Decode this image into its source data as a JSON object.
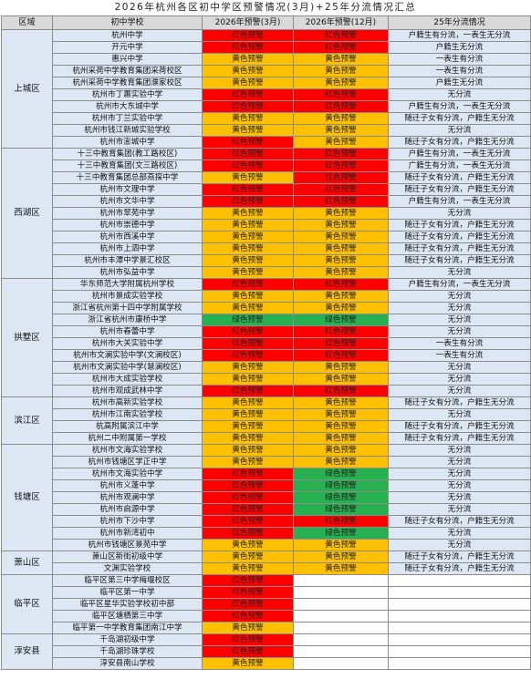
{
  "title": "2026年杭州各区初中学区预警情况(3月)+25年分流情况汇总",
  "headers": [
    "区域",
    "初中学校",
    "2026年预警(3月)",
    "2026年预警(12月)",
    "25年分流情况"
  ],
  "colors": {
    "red": "#fe0000",
    "yellow": "#ffc000",
    "green": "#27b04f",
    "blue": "#dde7f3"
  },
  "labels": {
    "r": "红色预警",
    "y": "黄色预警",
    "g": "绿色预警"
  },
  "regions": [
    {
      "name": "上城区",
      "schools": [
        {
          "name": "杭州中学",
          "mar": "r",
          "dec": "r",
          "note": "户籍生有分流，一表生无分流"
        },
        {
          "name": "开元中学",
          "mar": "r",
          "dec": "r",
          "note": "户籍生无分流"
        },
        {
          "name": "惠兴中学",
          "mar": "y",
          "dec": "y",
          "note": "一表生有分流"
        },
        {
          "name": "杭州采荷中学教育集团采荷校区",
          "mar": "y",
          "dec": "y",
          "note": "一表生有分流"
        },
        {
          "name": "杭州采荷中学教育集团濮家校区",
          "mar": "y",
          "dec": "y",
          "note": "户籍生无分流"
        },
        {
          "name": "杭州市丁蕙实验中学",
          "mar": "r",
          "dec": "r",
          "note": "无分流"
        },
        {
          "name": "杭州市大东城中学",
          "mar": "r",
          "dec": "r",
          "note": "户籍生有分流，一表生无分流"
        },
        {
          "name": "杭州市丁兰实验中学",
          "mar": "y",
          "dec": "y",
          "note": "随迁子女有分流，户籍生无分流"
        },
        {
          "name": "杭州市钱江新城实验学校",
          "mar": "y",
          "dec": "y",
          "note": "无分流"
        },
        {
          "name": "杭州市澎城中学",
          "mar": "r",
          "dec": "y",
          "note": "随迁子女有分流，户籍生无分流"
        }
      ]
    },
    {
      "name": "西湖区",
      "schools": [
        {
          "name": "十三中教育集团(教工路校区)",
          "mar": "r",
          "dec": "r",
          "note": "户籍生有分流，一表生无分流"
        },
        {
          "name": "十三中教育集团(文三路校区)",
          "mar": "r",
          "dec": "r",
          "note": "广籍生有分流，一表生无分流"
        },
        {
          "name": "十三中教育集团总部燕探中学",
          "mar": "y",
          "dec": "r",
          "note": "随迁子女有分流，户籍生无分流"
        },
        {
          "name": "杭州市文理中学",
          "mar": "r",
          "dec": "r",
          "note": "随迁子女有分流，户籍生无分流"
        },
        {
          "name": "杭州市文华中学",
          "mar": "r",
          "dec": "r",
          "note": "户籍生有分流，一表生无分流"
        },
        {
          "name": "杭州市翠苑中学",
          "mar": "y",
          "dec": "y",
          "note": "无分流"
        },
        {
          "name": "杭州市崇德中学",
          "mar": "y",
          "dec": "y",
          "note": "随迁子女有分流，户籍生无分流"
        },
        {
          "name": "杭州市西溪中学",
          "mar": "y",
          "dec": "y",
          "note": "随迁子女有分流，户籍生无分流"
        },
        {
          "name": "杭州市上泗中学",
          "mar": "y",
          "dec": "y",
          "note": "随迁子女有分流，户籍生无分流"
        },
        {
          "name": "杭州市丰潭中学景汇校区",
          "mar": "y",
          "dec": "y",
          "note": "随迁子女有分流，户籍生无分流"
        },
        {
          "name": "杭州市弘益中学",
          "mar": "y",
          "dec": "y",
          "note": "无分流"
        }
      ]
    },
    {
      "name": "拱墅区",
      "schools": [
        {
          "name": "华东师范大学附属杭州学校",
          "mar": "r",
          "dec": "r",
          "note": "户籍生有分流，一表生无分流"
        },
        {
          "name": "杭州市景成实验学校",
          "mar": "y",
          "dec": "y",
          "note": "无分流"
        },
        {
          "name": "浙江省杭州第十四中学附属学校",
          "mar": "y",
          "dec": "y",
          "note": "无分流"
        },
        {
          "name": "浙江省杭州市康桥中学",
          "mar": "g",
          "dec": "g",
          "note": "无分流"
        },
        {
          "name": "杭州市春蕾中学",
          "mar": "r",
          "dec": "r",
          "note": "无分流"
        },
        {
          "name": "杭州市大关实验中学",
          "mar": "r",
          "dec": "r",
          "note": "一表生有分流"
        },
        {
          "name": "杭州市文澜实验中学(文澜校区)",
          "mar": "r",
          "dec": "r",
          "note": "一表生有分流"
        },
        {
          "name": "杭州市文澜实验中学(慧澜校区)",
          "mar": "y",
          "dec": "y",
          "note": "无分流"
        },
        {
          "name": "杭州市大成实验学校",
          "mar": "y",
          "dec": "y",
          "note": "无分流"
        },
        {
          "name": "杭州市观成武林中学",
          "mar": "r",
          "dec": "r",
          "note": "无分流"
        }
      ]
    },
    {
      "name": "滨江区",
      "schools": [
        {
          "name": "杭州市高新实验学校",
          "mar": "y",
          "dec": "y",
          "note": "随迁子女有分流，户籍生无分流"
        },
        {
          "name": "杭州市江南实验学校",
          "mar": "y",
          "dec": "y",
          "note": "无分流"
        },
        {
          "name": "杭高附属滨江中学",
          "mar": "y",
          "dec": "y",
          "note": "随迁子女有分流，户籍生无分流"
        },
        {
          "name": "杭州二中附属第一学校",
          "mar": "y",
          "dec": "y",
          "note": "随迁子女有分流，户籍生无分流"
        }
      ]
    },
    {
      "name": "钱塘区",
      "schools": [
        {
          "name": "杭州市文海实验学校",
          "mar": "y",
          "dec": "y",
          "note": "无分流"
        },
        {
          "name": "杭州市钱塘区学正中学",
          "mar": "y",
          "dec": "y",
          "note": "无分流"
        },
        {
          "name": "杭州市文海实验中学",
          "mar": "r",
          "dec": "g",
          "note": "无分流"
        },
        {
          "name": "杭州市义蓬中学",
          "mar": "r",
          "dec": "g",
          "note": "无分流"
        },
        {
          "name": "杭州市观澜中学",
          "mar": "r",
          "dec": "g",
          "note": "无分流"
        },
        {
          "name": "杭州市启源中学",
          "mar": "r",
          "dec": "g",
          "note": "无分流"
        },
        {
          "name": "杭州市下沙中学",
          "mar": "r",
          "dec": "r",
          "note": "随迁子女有分流，户籍生无分流"
        },
        {
          "name": "杭州市新湾初中",
          "mar": "r",
          "dec": "g",
          "note": "无分流"
        },
        {
          "name": "杭州市钱塘区景苑中学",
          "mar": "y",
          "dec": "y",
          "note": "无分流"
        }
      ]
    },
    {
      "name": "萧山区",
      "schools": [
        {
          "name": "萧山区新街初级中学",
          "mar": "y",
          "dec": "y",
          "note": "随迁子女有分流，户籍生无分流"
        },
        {
          "name": "文渊实验学校",
          "mar": "y",
          "dec": "y",
          "note": "随迁子女有分流，户籍生无分流"
        }
      ]
    },
    {
      "name": "临平区",
      "schools": [
        {
          "name": "临平区第三中学梅堰校区",
          "mar": "r",
          "dec": "",
          "note": ""
        },
        {
          "name": "临平区第一中学",
          "mar": "r",
          "dec": "",
          "note": ""
        },
        {
          "name": "临平区星华实验学校初中部",
          "mar": "r",
          "dec": "",
          "note": ""
        },
        {
          "name": "临平区塘栖第三中学",
          "mar": "r",
          "dec": "",
          "note": ""
        },
        {
          "name": "临平第一中学教育集团南江中学",
          "mar": "y",
          "dec": "",
          "note": ""
        }
      ]
    },
    {
      "name": "淳安县",
      "schools": [
        {
          "name": "千岛湖初级中学",
          "mar": "r",
          "dec": "",
          "note": ""
        },
        {
          "name": "千岛湖珍珠学校",
          "mar": "r",
          "dec": "",
          "note": ""
        },
        {
          "name": "淳安县南山学校",
          "mar": "y",
          "dec": "",
          "note": ""
        }
      ]
    }
  ]
}
